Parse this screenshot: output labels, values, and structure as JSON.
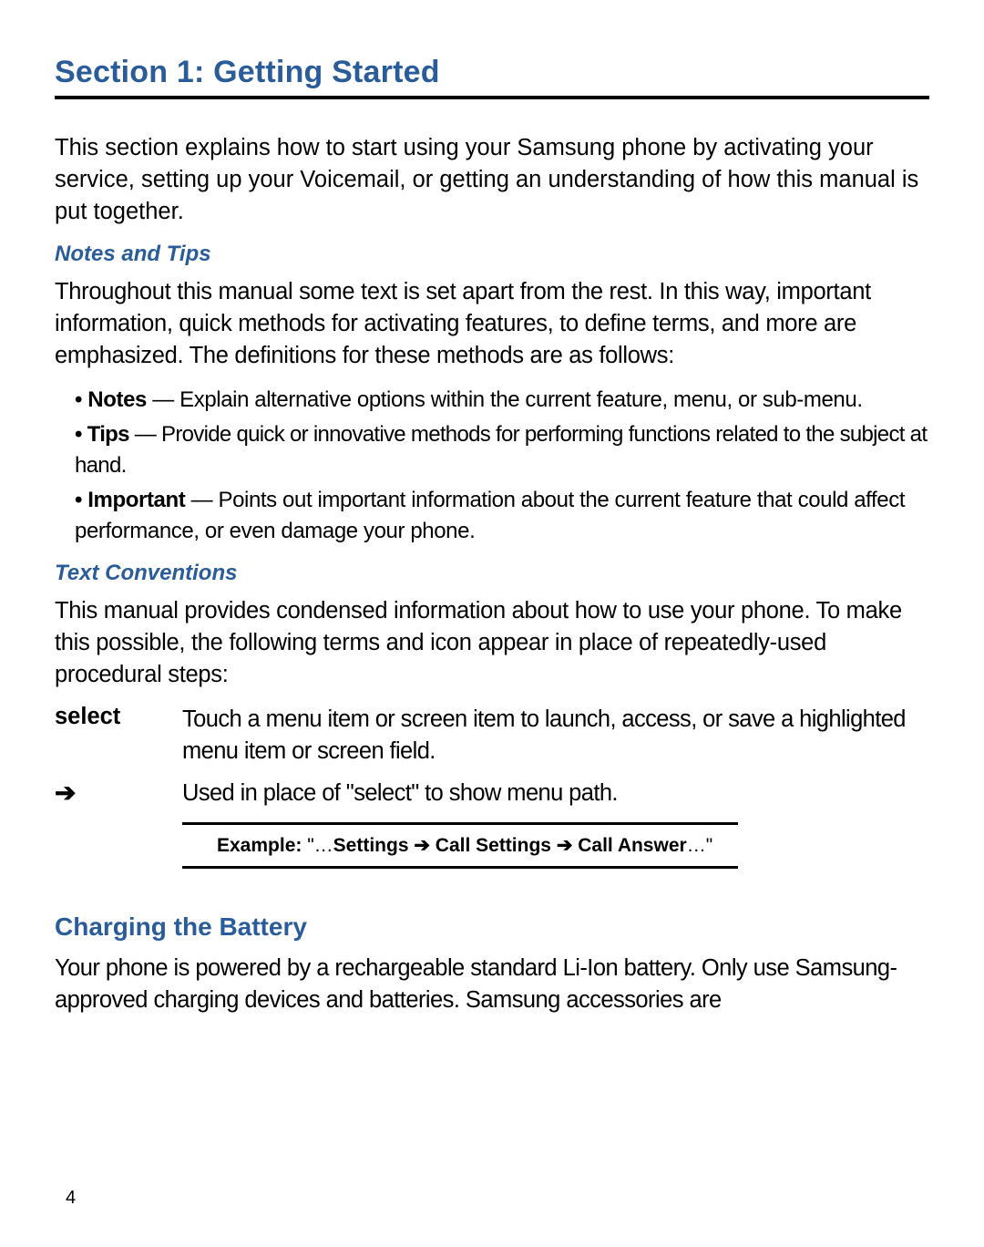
{
  "colors": {
    "heading_blue": "#2a5c9a",
    "text_black": "#000000",
    "background": "#ffffff",
    "rule_black": "#000000"
  },
  "fontsizes_pt": {
    "section_title": 26,
    "subheading": 18,
    "heading2": 21,
    "body": 19,
    "bullet": 18,
    "example": 16,
    "page_number": 15
  },
  "section_title": "Section 1: Getting Started",
  "intro_paragraph": "This section explains how to start using your Samsung phone by activating your service, setting up your Voicemail, or getting an understanding of how this manual is put together.",
  "notes_tips": {
    "heading": "Notes and Tips",
    "intro": "Throughout this manual some text is set apart from the rest. In this way, important information, quick methods for activating features, to define terms, and more are emphasized. The definitions for these methods are as follows:",
    "bullets": [
      {
        "term": "Notes",
        "text": " — Explain alternative options within the current feature, menu, or sub-menu."
      },
      {
        "term": "Tips",
        "text": " — Provide quick or innovative methods for performing functions related to the subject at hand."
      },
      {
        "term": "Important",
        "text": " — Points out important information about the current feature that could affect performance, or even damage your phone."
      }
    ]
  },
  "text_conventions": {
    "heading": "Text Conventions",
    "intro": "This manual provides condensed information about how to use your phone. To make this possible, the following terms and icon appear in place of repeatedly-used procedural steps:",
    "rows": [
      {
        "term": "select",
        "def": "Touch a menu item or screen item to launch, access, or save a highlighted menu item or screen field."
      },
      {
        "term": "➔",
        "def": "Used in place of \"select\" to show menu path."
      }
    ],
    "example": {
      "label": "Example:",
      "prefix": " \"…",
      "path_parts": [
        "Settings",
        "Call Settings",
        "Call Answer"
      ],
      "arrow": " ➔ ",
      "suffix": "…\""
    }
  },
  "charging": {
    "heading": "Charging the Battery",
    "paragraph": "Your phone is powered by a rechargeable standard Li-Ion battery. Only use Samsung-approved charging devices and batteries. Samsung accessories are"
  },
  "page_number": "4"
}
